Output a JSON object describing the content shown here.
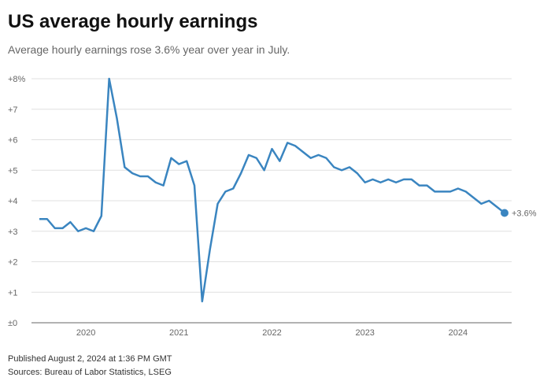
{
  "title": "US average hourly earnings",
  "subtitle": "Average hourly earnings rose 3.6% year over year in July.",
  "footer": {
    "published": "Published August 2, 2024 at 1:36 PM GMT",
    "sources": "Sources: Bureau of Labor Statistics, LSEG"
  },
  "chart_data": {
    "type": "line",
    "title": "US average hourly earnings",
    "x_start": "2019-07",
    "x_end": "2024-07",
    "frequency": "monthly",
    "x_tick_labels": [
      "2020",
      "2021",
      "2022",
      "2023",
      "2024"
    ],
    "y_tick_labels": [
      "±0",
      "+1",
      "+2",
      "+3",
      "+4",
      "+5",
      "+6",
      "+7",
      "+8%"
    ],
    "ylim": [
      0,
      8
    ],
    "grid": true,
    "line_color": "#3a85c0",
    "end_label": "+3.6%",
    "series": [
      {
        "values": [
          3.4,
          3.4,
          3.1,
          3.1,
          3.3,
          3.0,
          3.1,
          3.0,
          3.5,
          8.0,
          6.7,
          5.1,
          4.9,
          4.8,
          4.8,
          4.6,
          4.5,
          5.4,
          5.2,
          5.3,
          4.5,
          0.7,
          2.4,
          3.9,
          4.3,
          4.4,
          4.9,
          5.5,
          5.4,
          5.0,
          5.7,
          5.3,
          5.9,
          5.8,
          5.6,
          5.4,
          5.5,
          5.4,
          5.1,
          5.0,
          5.1,
          4.9,
          4.6,
          4.7,
          4.6,
          4.7,
          4.6,
          4.7,
          4.7,
          4.5,
          4.5,
          4.3,
          4.3,
          4.3,
          4.4,
          4.3,
          4.1,
          3.9,
          4.0,
          3.8,
          3.6
        ]
      }
    ]
  }
}
